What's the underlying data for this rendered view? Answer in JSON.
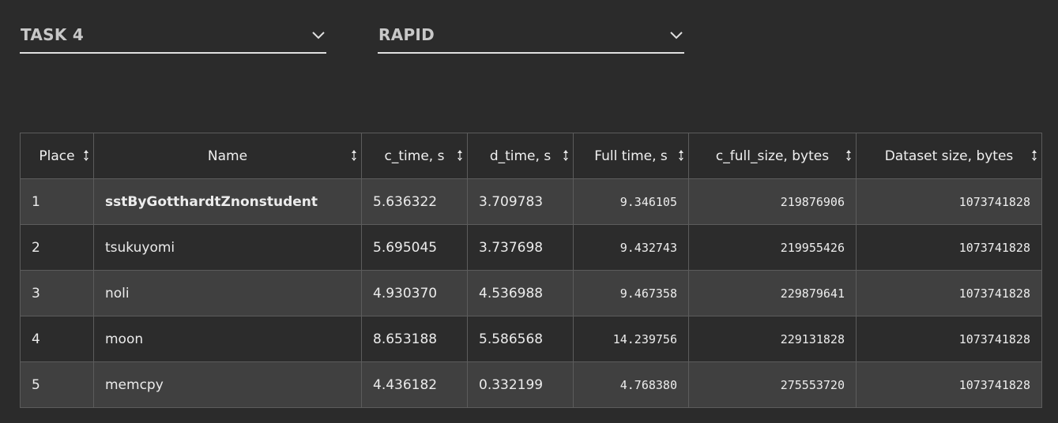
{
  "filters": {
    "task": {
      "selected": "TASK 4"
    },
    "mode": {
      "selected": "RAPID"
    }
  },
  "table": {
    "columns": [
      "Place",
      "Name",
      "c_time, s",
      "d_time, s",
      "Full time, s",
      "c_full_size, bytes",
      "Dataset size, bytes"
    ],
    "rows": [
      {
        "place": "1",
        "name": "sstByGotthardtZnonstudent",
        "c_time": "5.636322",
        "d_time": "3.709783",
        "full_time": "9.346105",
        "c_full_size": "219876906",
        "dataset_size": "1073741828"
      },
      {
        "place": "2",
        "name": "tsukuyomi",
        "c_time": "5.695045",
        "d_time": "3.737698",
        "full_time": "9.432743",
        "c_full_size": "219955426",
        "dataset_size": "1073741828"
      },
      {
        "place": "3",
        "name": "noli",
        "c_time": "4.930370",
        "d_time": "4.536988",
        "full_time": "9.467358",
        "c_full_size": "229879641",
        "dataset_size": "1073741828"
      },
      {
        "place": "4",
        "name": "moon",
        "c_time": "8.653188",
        "d_time": "5.586568",
        "full_time": "14.239756",
        "c_full_size": "229131828",
        "dataset_size": "1073741828"
      },
      {
        "place": "5",
        "name": "memcpy",
        "c_time": "4.436182",
        "d_time": "0.332199",
        "full_time": "4.768380",
        "c_full_size": "275553720",
        "dataset_size": "1073741828"
      }
    ]
  },
  "icons": {
    "dropdown": "chevron-down-icon",
    "sort": "sort-arrows-icon"
  },
  "colors": {
    "background": "#2b2b2b",
    "row_alt": "#404040",
    "border": "#5c5c5c",
    "text": "#ececec"
  }
}
